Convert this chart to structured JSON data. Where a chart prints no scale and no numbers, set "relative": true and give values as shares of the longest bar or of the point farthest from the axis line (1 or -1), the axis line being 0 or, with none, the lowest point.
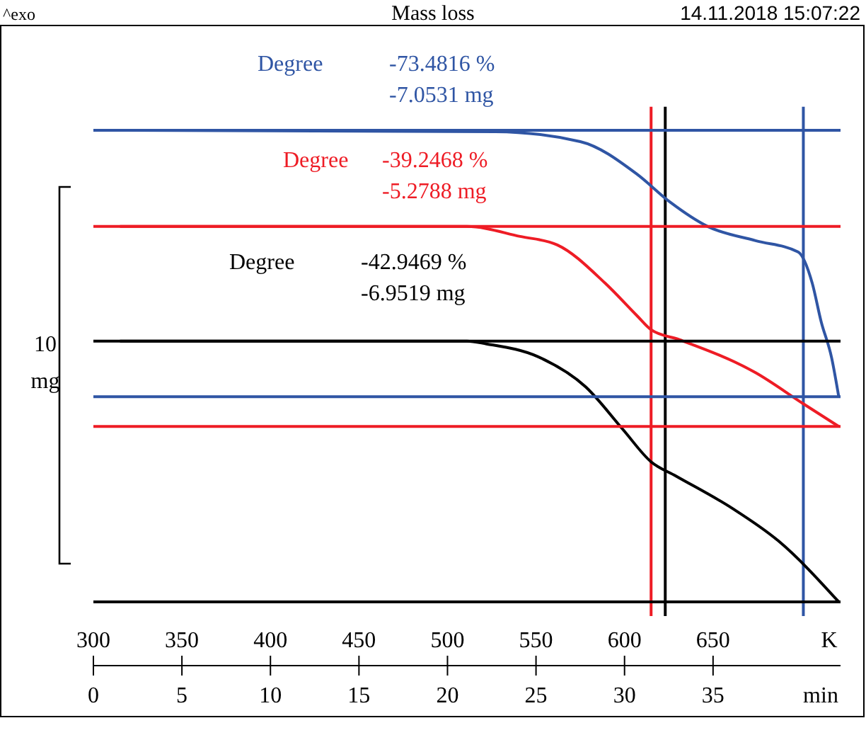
{
  "chart_data": {
    "type": "line",
    "title": "Mass loss",
    "xlabel": "K",
    "x2label": "min",
    "relative": true,
    "line_style": "solid",
    "xlim": [
      300,
      722
    ],
    "xticks": [
      300,
      350,
      400,
      450,
      500,
      550,
      600,
      650
    ],
    "x2lim": [
      0,
      42.2
    ],
    "x2ticks": [
      0,
      5,
      10,
      15,
      20,
      25,
      30,
      35
    ],
    "annotations": [
      "^exo",
      "14.11.2018 15:07:22",
      "10 mg",
      "Degree -73.4816 %\n-7.0531 mg",
      "Degree -39.2468 %\n-5.2788 mg",
      "Degree -42.9469 %\n-6.9519 mg"
    ],
    "series": [
      {
        "color": "#2f55a4",
        "x": [
          315,
          527,
          575,
          607,
          626,
          647,
          674,
          698,
          706,
          711,
          717,
          721
        ],
        "values": [
          1.0,
          0.997,
          0.976,
          0.907,
          0.847,
          0.796,
          0.766,
          0.742,
          0.676,
          0.595,
          0.517,
          0.435
        ]
      },
      {
        "color": "#ee1c25",
        "x": [
          315,
          511,
          541,
          562,
          589,
          607,
          615,
          631,
          674,
          701,
          721
        ],
        "values": [
          0.796,
          0.796,
          0.775,
          0.757,
          0.676,
          0.607,
          0.577,
          0.556,
          0.486,
          0.42,
          0.372
        ]
      },
      {
        "color": "#000000",
        "x": [
          315,
          511,
          522,
          551,
          578,
          599,
          615,
          629,
          661,
          687,
          721
        ],
        "values": [
          0.553,
          0.553,
          0.547,
          0.52,
          0.456,
          0.366,
          0.297,
          0.267,
          0.198,
          0.129,
          0.0
        ]
      }
    ],
    "ref_lines": [
      {
        "axis": "y",
        "value": 1.0,
        "color": "#2f55a4"
      },
      {
        "axis": "y",
        "value": 0.435,
        "color": "#2f55a4"
      },
      {
        "axis": "x",
        "value": 701,
        "color": "#2f55a4"
      },
      {
        "axis": "y",
        "value": 0.796,
        "color": "#ee1c25"
      },
      {
        "axis": "y",
        "value": 0.372,
        "color": "#ee1c25"
      },
      {
        "axis": "x",
        "value": 615,
        "color": "#ee1c25"
      },
      {
        "axis": "y",
        "value": 0.553,
        "color": "#000000"
      },
      {
        "axis": "x",
        "value": 623,
        "color": "#000000"
      }
    ]
  }
}
